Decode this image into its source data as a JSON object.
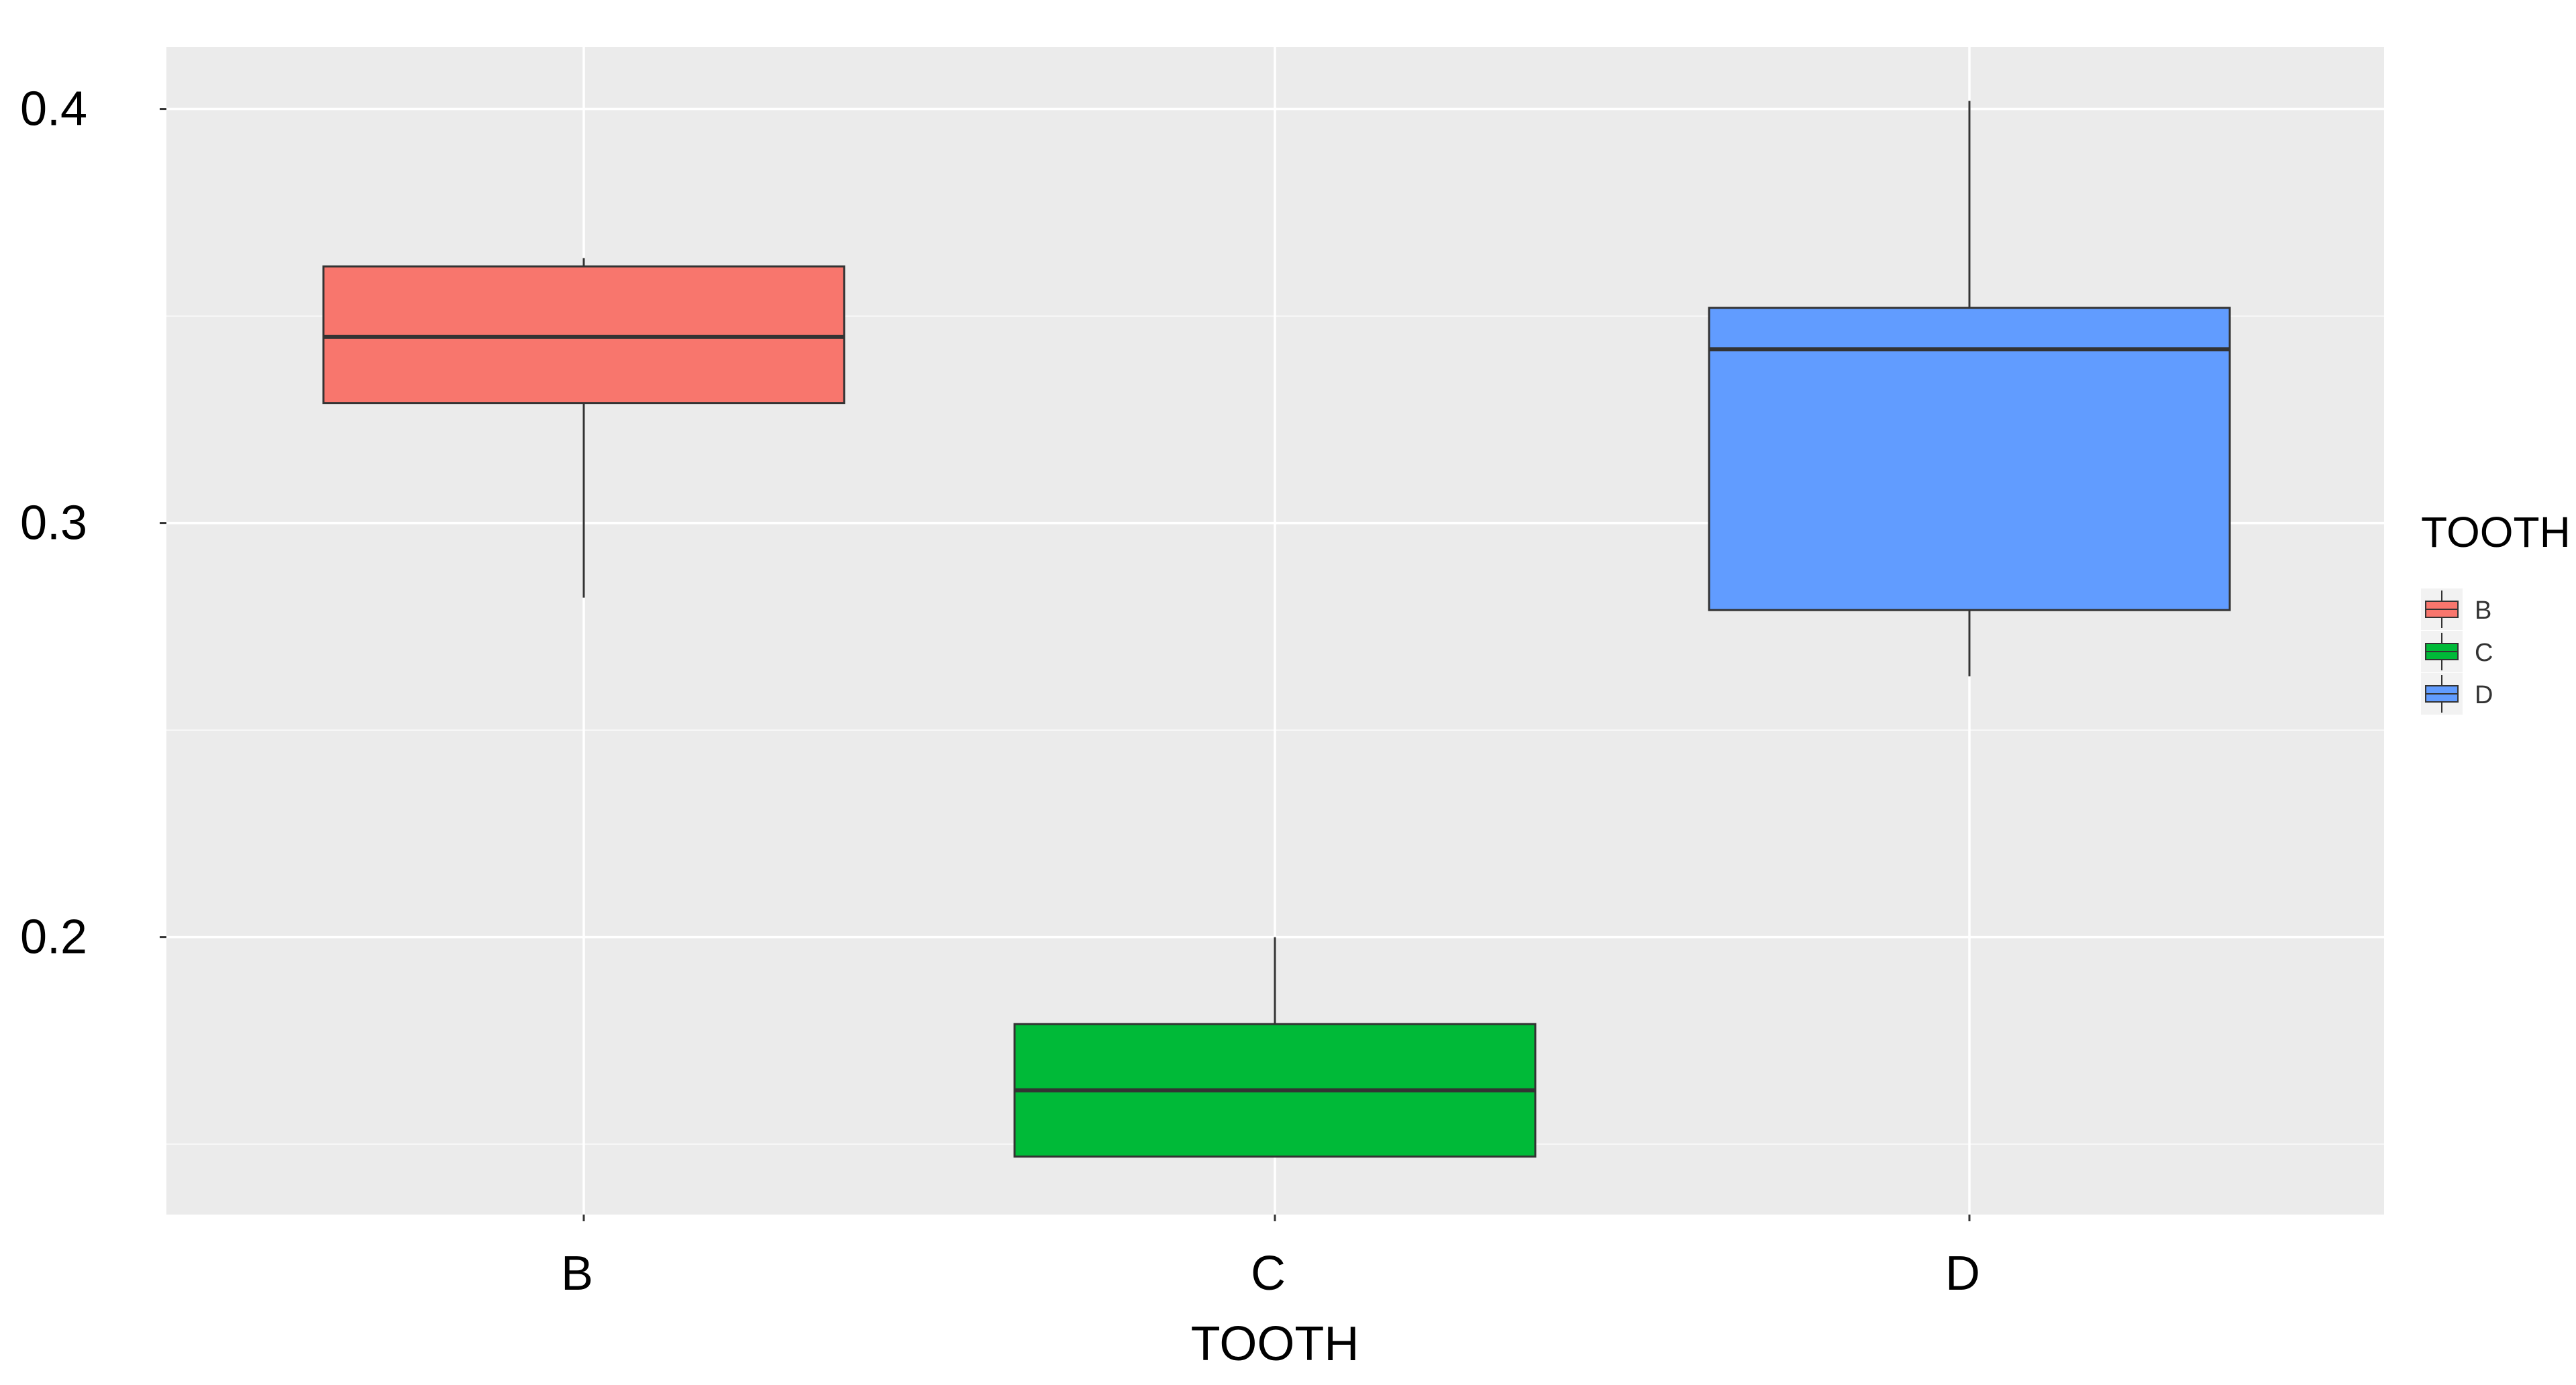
{
  "chart_data": {
    "type": "boxplot",
    "title": "",
    "xlabel": "TOOTH",
    "ylabel": "",
    "categories": [
      "B",
      "C",
      "D"
    ],
    "y_ticks": [
      "0.2",
      "0.3",
      "0.4"
    ],
    "ylim": [
      0.133,
      0.415
    ],
    "grid": true,
    "legend": {
      "title": "TOOTH",
      "placement": "right",
      "entries": [
        "B",
        "C",
        "D"
      ]
    },
    "boxes": [
      {
        "category": "B",
        "color": "#F8766D",
        "whisker_low": 0.282,
        "q1": 0.329,
        "median": 0.345,
        "q3": 0.362,
        "whisker_high": 0.364
      },
      {
        "category": "C",
        "color": "#00BA38",
        "whisker_low": 0.147,
        "q1": 0.147,
        "median": 0.163,
        "q3": 0.179,
        "whisker_high": 0.2
      },
      {
        "category": "D",
        "color": "#619CFF",
        "whisker_low": 0.263,
        "q1": 0.279,
        "median": 0.342,
        "q3": 0.352,
        "whisker_high": 0.402
      }
    ]
  }
}
